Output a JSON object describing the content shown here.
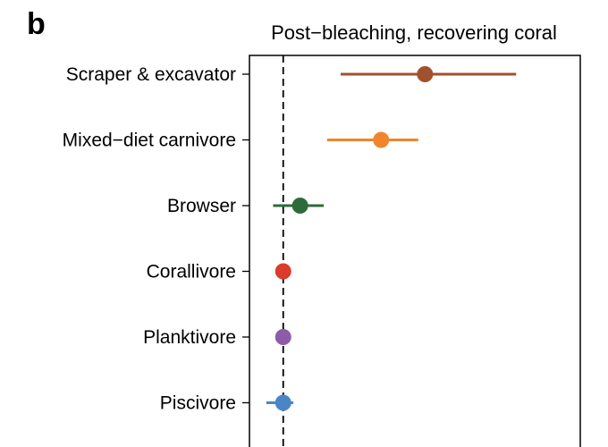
{
  "panel_label": "b",
  "chart_data": {
    "type": "scatter",
    "title": "Post−bleaching, recovering coral",
    "xlabel": "",
    "ylabel": "",
    "reference_line": {
      "x": 0,
      "style": "dashed"
    },
    "x_axis_visible": false,
    "grid": false,
    "categories": [
      "Scraper & excavator",
      "Mixed−diet carnivore",
      "Browser",
      "Corallivore",
      "Planktivore",
      "Piscivore"
    ],
    "estimates": [
      4.2,
      2.9,
      0.5,
      0.0,
      0.0,
      0.0
    ],
    "ci_low": [
      1.7,
      1.3,
      -0.3,
      0.0,
      0.0,
      -0.5
    ],
    "ci_high": [
      6.9,
      4.0,
      1.2,
      0.0,
      0.0,
      0.3
    ],
    "colors": [
      "#a0522d",
      "#f0852d",
      "#2e6b3a",
      "#dc3a2b",
      "#8e5ba8",
      "#4a86c5"
    ],
    "xlim": [
      -1.0,
      8.8
    ]
  }
}
